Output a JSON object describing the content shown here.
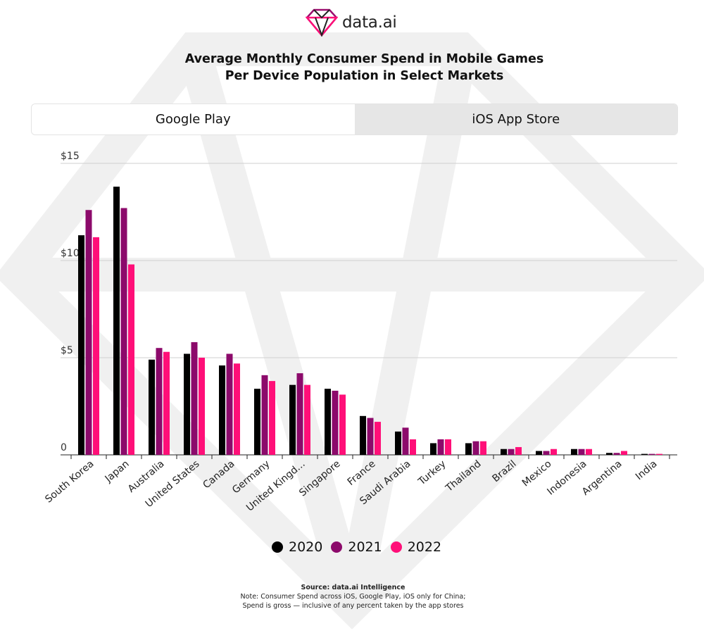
{
  "brand": {
    "name": "data.ai",
    "logo_icon": "diamond-logo-icon",
    "colors": {
      "logo_top": "#9b0c6e",
      "logo_bottom": "#ff0f78"
    }
  },
  "title": {
    "line1": "Average Monthly Consumer Spend in Mobile Games",
    "line2": "Per Device Population in Select Markets"
  },
  "tabs": [
    {
      "label": "Google Play",
      "active": true
    },
    {
      "label": "iOS App Store",
      "active": false
    }
  ],
  "chart_data": {
    "type": "bar",
    "title": "Average Monthly Consumer Spend in Mobile Games Per Device Population in Select Markets",
    "categories": [
      "South Korea",
      "Japan",
      "Australia",
      "United States",
      "Canada",
      "Germany",
      "United Kingd...",
      "Singapore",
      "France",
      "Saudi Arabia",
      "Turkey",
      "Thailand",
      "Brazil",
      "Mexico",
      "Indonesia",
      "Argentina",
      "India"
    ],
    "series": [
      {
        "name": "2020",
        "color": "#000000",
        "values": [
          11.3,
          13.8,
          4.9,
          5.2,
          4.6,
          3.4,
          3.6,
          3.4,
          2.0,
          1.2,
          0.6,
          0.6,
          0.3,
          0.2,
          0.3,
          0.1,
          0.05
        ]
      },
      {
        "name": "2021",
        "color": "#8c0a6b",
        "values": [
          12.6,
          12.7,
          5.5,
          5.8,
          5.2,
          4.1,
          4.2,
          3.3,
          1.9,
          1.4,
          0.8,
          0.7,
          0.3,
          0.2,
          0.3,
          0.1,
          0.05
        ]
      },
      {
        "name": "2022",
        "color": "#ff0f78",
        "values": [
          11.2,
          9.8,
          5.3,
          5.0,
          4.7,
          3.8,
          3.6,
          3.1,
          1.7,
          0.8,
          0.8,
          0.7,
          0.4,
          0.3,
          0.3,
          0.2,
          0.05
        ]
      }
    ],
    "ylim": [
      0,
      15
    ],
    "yticks": [
      {
        "value": 0,
        "label": "0"
      },
      {
        "value": 5,
        "label": "$5"
      },
      {
        "value": 10,
        "label": "$10"
      },
      {
        "value": 15,
        "label": "$15"
      }
    ],
    "grid": true,
    "legend_position": "bottom-center",
    "xlabel": "",
    "ylabel": ""
  },
  "footer": {
    "source": "Source: data.ai Intelligence",
    "note": "Note: Consumer Spend across iOS, Google Play, iOS only for China; Spend is gross — inclusive of any percent taken by the app stores"
  }
}
